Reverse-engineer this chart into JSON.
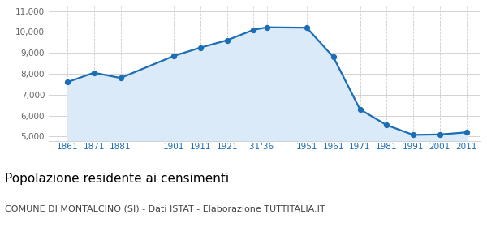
{
  "x_labels": [
    "1861",
    "1871",
    "1881",
    "1901",
    "1911",
    "1921",
    "'31",
    "'36",
    "1951",
    "1961",
    "1971",
    "1981",
    "1991",
    "2001",
    "2011"
  ],
  "x_positions": [
    1861,
    1871,
    1881,
    1901,
    1911,
    1921,
    1931,
    1936,
    1951,
    1961,
    1971,
    1981,
    1991,
    2001,
    2011
  ],
  "values": [
    7600,
    8050,
    7800,
    8850,
    9250,
    9600,
    10100,
    10220,
    10200,
    8800,
    6300,
    5550,
    5080,
    5100,
    5200
  ],
  "line_color": "#1b6db5",
  "fill_color": "#daeaf8",
  "marker_color": "#1b6db5",
  "background_color": "#ffffff",
  "grid_color": "#cccccc",
  "ylim": [
    4800,
    11200
  ],
  "yticks": [
    5000,
    6000,
    7000,
    8000,
    9000,
    10000,
    11000
  ],
  "title": "Popolazione residente ai censimenti",
  "subtitle": "COMUNE DI MONTALCINO (SI) - Dati ISTAT - Elaborazione TUTTITALIA.IT",
  "title_fontsize": 11,
  "subtitle_fontsize": 8,
  "title_color": "#000000",
  "subtitle_color": "#444444",
  "xlabel_color": "#1b6db5",
  "ylabel_color": "#666666"
}
